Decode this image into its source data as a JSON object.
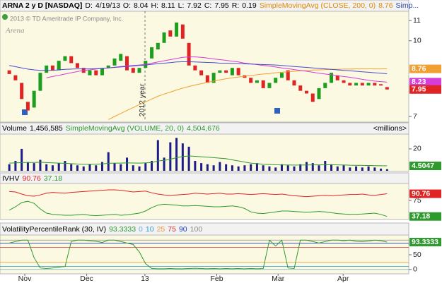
{
  "header": {
    "symbol": "ARNA 2 y D [NASDAQ]",
    "quote": [
      {
        "label": "D:",
        "value": "4/19/13"
      },
      {
        "label": "O:",
        "value": 8.04
      },
      {
        "label": "H:",
        "value": 8.11
      },
      {
        "label": "L:",
        "value": 7.92
      },
      {
        "label": "C:",
        "value": 7.95
      },
      {
        "label": "R:",
        "value": 0.19
      }
    ],
    "study_more": "Simp..."
  },
  "copyright": "2013 © TD Ameritrade IP Company, Inc.",
  "watermark": "Arena",
  "annotation": "2012 year",
  "chart_data": [
    {
      "type": "candlestick",
      "log_scale": true,
      "xlim": [
        -1.5,
        64.5
      ],
      "ylim": [
        6.84,
        11.49
      ],
      "yticks": [
        7,
        10,
        11
      ],
      "up_color": "#1e9e1e",
      "down_color": "#e02424",
      "open": [
        8.7,
        8.5,
        8.2,
        7.5,
        7.3,
        7.9,
        8.6,
        8.9,
        8.7,
        9.1,
        9.3,
        9.0,
        8.8,
        8.5,
        8.7,
        8.5,
        8.8,
        8.9,
        9.1,
        9.3,
        8.8,
        8.6,
        8.8,
        9.2,
        9.6,
        9.9,
        10.5,
        10.2,
        10.8,
        9.9,
        8.9,
        8.7,
        8.5,
        8.2,
        8.6,
        8.7,
        8.5,
        8.8,
        8.5,
        8.4,
        8.2,
        8.3,
        8.0,
        8.2,
        8.4,
        8.7,
        8.3,
        8.1,
        7.9,
        7.8,
        7.6,
        8.0,
        8.2,
        8.5,
        8.3,
        8.2,
        8.1,
        8.2,
        8.1,
        8.2,
        8.15,
        8.04
      ],
      "close": [
        8.55,
        8.3,
        7.6,
        7.2,
        7.9,
        8.6,
        8.9,
        8.7,
        9.1,
        9.3,
        9.0,
        8.8,
        8.6,
        8.7,
        8.5,
        8.8,
        8.9,
        9.2,
        9.4,
        8.7,
        8.6,
        8.8,
        9.1,
        9.7,
        9.9,
        10.4,
        10.2,
        10.9,
        10.1,
        8.9,
        8.7,
        8.5,
        8.2,
        8.6,
        8.7,
        8.6,
        8.8,
        8.5,
        8.4,
        8.2,
        8.3,
        8.0,
        8.2,
        8.4,
        8.6,
        8.3,
        8.1,
        7.9,
        7.8,
        7.5,
        8.0,
        8.2,
        8.6,
        8.3,
        8.2,
        8.1,
        8.2,
        8.1,
        8.2,
        8.1,
        8.1,
        7.95
      ],
      "series": [
        {
          "name": "SimpleMovingAvg (CLOSE, 200, 0)",
          "color": "#f0a030",
          "last_label": true,
          "values": [
            null,
            null,
            null,
            null,
            null,
            null,
            null,
            null,
            null,
            null,
            null,
            null,
            null,
            null,
            null,
            null,
            6.9,
            7.0,
            7.1,
            7.2,
            7.3,
            7.4,
            7.5,
            7.6,
            7.7,
            7.78,
            7.85,
            7.93,
            8.0,
            8.06,
            8.12,
            8.17,
            8.22,
            8.27,
            8.32,
            8.36,
            8.4,
            8.43,
            8.46,
            8.49,
            8.52,
            8.55,
            8.57,
            8.6,
            8.62,
            8.64,
            8.66,
            8.68,
            8.69,
            8.71,
            8.72,
            8.73,
            8.74,
            8.74,
            8.75,
            8.75,
            8.76,
            8.76,
            8.76,
            8.76,
            8.76,
            8.76
          ]
        },
        {
          "color": "#d63cd6",
          "last_label": true,
          "values": [
            null,
            null,
            null,
            null,
            null,
            null,
            8.4,
            8.45,
            8.5,
            8.55,
            8.6,
            8.65,
            8.7,
            8.72,
            8.75,
            8.78,
            8.8,
            8.83,
            8.86,
            8.88,
            8.9,
            8.92,
            8.95,
            9.0,
            9.05,
            9.1,
            9.15,
            9.2,
            9.25,
            9.27,
            9.27,
            9.25,
            9.22,
            9.18,
            9.15,
            9.12,
            9.08,
            9.05,
            9.0,
            8.97,
            8.94,
            8.9,
            8.87,
            8.84,
            8.8,
            8.77,
            8.73,
            8.7,
            8.66,
            8.62,
            8.58,
            8.55,
            8.52,
            8.48,
            8.45,
            8.42,
            8.38,
            8.34,
            8.3,
            8.27,
            8.25,
            8.23
          ]
        },
        {
          "color": "#4a4ad0",
          "values": [
            8.9,
            8.85,
            8.8,
            8.75,
            8.72,
            8.7,
            8.7,
            8.7,
            8.72,
            8.74,
            8.75,
            8.76,
            8.76,
            8.76,
            8.77,
            8.78,
            8.8,
            8.82,
            8.84,
            8.86,
            8.88,
            8.9,
            8.92,
            8.95,
            8.98,
            9.0,
            9.02,
            9.05,
            9.06,
            9.06,
            9.05,
            9.04,
            9.03,
            9.02,
            9.0,
            9.0,
            8.99,
            8.98,
            8.97,
            8.96,
            8.95,
            8.94,
            8.93,
            8.92,
            8.9,
            8.88,
            8.86,
            8.84,
            8.82,
            8.8,
            8.78,
            8.76,
            8.74,
            8.72,
            8.7,
            8.68,
            8.66,
            8.64,
            8.62,
            8.6,
            8.58,
            8.56
          ]
        }
      ]
    },
    {
      "type": "bar",
      "title": "Volume",
      "readout": "1,456,585",
      "units": "<millions>",
      "color": "#1c1c8a",
      "xlim": [
        -1.5,
        64.5
      ],
      "ylim": [
        0,
        33.5
      ],
      "yticks": [
        20
      ],
      "values": [
        6,
        9,
        20,
        8,
        7,
        10,
        6,
        5,
        7,
        9,
        6,
        5,
        4,
        6,
        5,
        8,
        17,
        7,
        6,
        12,
        5,
        4,
        7,
        9,
        28,
        12,
        26,
        30,
        25,
        22,
        9,
        7,
        6,
        5,
        8,
        6,
        5,
        4,
        5,
        6,
        7,
        5,
        4,
        3,
        6,
        5,
        4,
        6,
        8,
        7,
        5,
        9,
        6,
        4,
        5,
        3,
        4,
        3,
        4,
        3,
        2,
        1.456585
      ],
      "series": [
        {
          "name": "SimpleMovingAvg (VOLUME, 20, 0)",
          "readout": "4,504,676",
          "color": "#2e9a2e",
          "last_label": true,
          "values": [
            7,
            7.2,
            7.5,
            7.6,
            7.6,
            7.8,
            7.5,
            7.2,
            7,
            6.8,
            6.5,
            6.2,
            6,
            6,
            6.1,
            6.3,
            6.8,
            7,
            7,
            7.2,
            7.1,
            7,
            7.2,
            7.5,
            9,
            9.5,
            10.5,
            12,
            13,
            13.5,
            13.2,
            12.8,
            12.5,
            12,
            11.5,
            11,
            10,
            9,
            8,
            7,
            6.5,
            6,
            5.8,
            5.5,
            5.4,
            5.3,
            5.2,
            5.2,
            5.3,
            5.4,
            5.4,
            5.5,
            5.5,
            5.4,
            5.3,
            5.1,
            5,
            4.9,
            4.8,
            4.7,
            4.6,
            4.5047
          ]
        }
      ]
    },
    {
      "type": "line",
      "title": "IVHV",
      "xlim": [
        -1.5,
        64.5
      ],
      "ylim": [
        31.7,
        115
      ],
      "yticks": [
        75
      ],
      "series": [
        {
          "color": "#e02424",
          "last_label": true,
          "values": [
            96,
            95,
            90,
            86,
            85,
            88,
            92,
            94,
            93,
            92,
            94,
            95,
            96,
            97,
            98,
            99,
            100,
            100,
            99,
            97,
            95,
            96,
            97,
            93,
            90,
            88,
            87,
            88,
            89,
            90,
            92,
            91,
            90,
            91,
            92,
            90,
            90,
            91,
            90,
            89,
            90,
            91,
            90,
            89,
            90,
            88,
            86,
            85,
            84,
            85,
            86,
            87,
            86,
            87,
            88,
            89,
            89,
            90,
            88,
            87,
            89,
            90.76
          ]
        },
        {
          "color": "#2e9a2e",
          "last_label": true,
          "values": [
            52,
            60,
            70,
            73,
            68,
            55,
            45,
            42,
            41,
            40,
            40,
            41,
            42,
            40,
            39,
            40,
            41,
            42,
            40,
            41,
            43,
            45,
            50,
            58,
            64,
            66,
            65,
            64,
            62,
            62,
            63,
            62,
            61,
            60,
            60,
            61,
            62,
            60,
            56,
            48,
            45,
            44,
            46,
            48,
            50,
            50,
            49,
            48,
            47,
            48,
            49,
            48,
            46,
            44,
            43,
            42,
            42,
            43,
            44,
            45,
            42,
            37.18
          ]
        }
      ]
    },
    {
      "type": "line",
      "title": "VolatilityPercentileRank (30, IV)",
      "xlim": [
        -1.5,
        64.5
      ],
      "ylim": [
        -15,
        117.5
      ],
      "yticks": [
        0,
        50
      ],
      "levels": [
        {
          "value": 0,
          "color": "#5fb0e0"
        },
        {
          "value": 10,
          "color": "#2a9ccc"
        },
        {
          "value": 25,
          "color": "#e89a3c"
        },
        {
          "value": 75,
          "color": "#d03030"
        },
        {
          "value": 90,
          "color": "#2040c0"
        },
        {
          "value": 100,
          "color": "#888888"
        }
      ],
      "xticks": [
        {
          "value": 2.5,
          "label": "Nov"
        },
        {
          "value": 12.5,
          "label": "Dec"
        },
        {
          "value": 21.9,
          "label": "13"
        },
        {
          "value": 33.5,
          "label": "Feb"
        },
        {
          "value": 43.4,
          "label": "Mar"
        },
        {
          "value": 53.9,
          "label": "Apr"
        }
      ],
      "series": [
        {
          "color": "#2e9a2e",
          "last_label": true,
          "values": [
            90,
            95,
            100,
            100,
            40,
            5,
            3,
            5,
            8,
            10,
            95,
            100,
            100,
            98,
            96,
            92,
            100,
            100,
            95,
            90,
            85,
            60,
            20,
            3,
            2,
            2,
            3,
            2,
            2,
            3,
            4,
            3,
            2,
            3,
            2,
            3,
            2,
            3,
            2,
            3,
            2,
            3,
            100,
            80,
            100,
            5,
            3,
            100,
            100,
            95,
            90,
            95,
            100,
            100,
            98,
            100,
            96,
            95,
            97,
            100,
            98,
            93.3333
          ]
        }
      ]
    }
  ]
}
